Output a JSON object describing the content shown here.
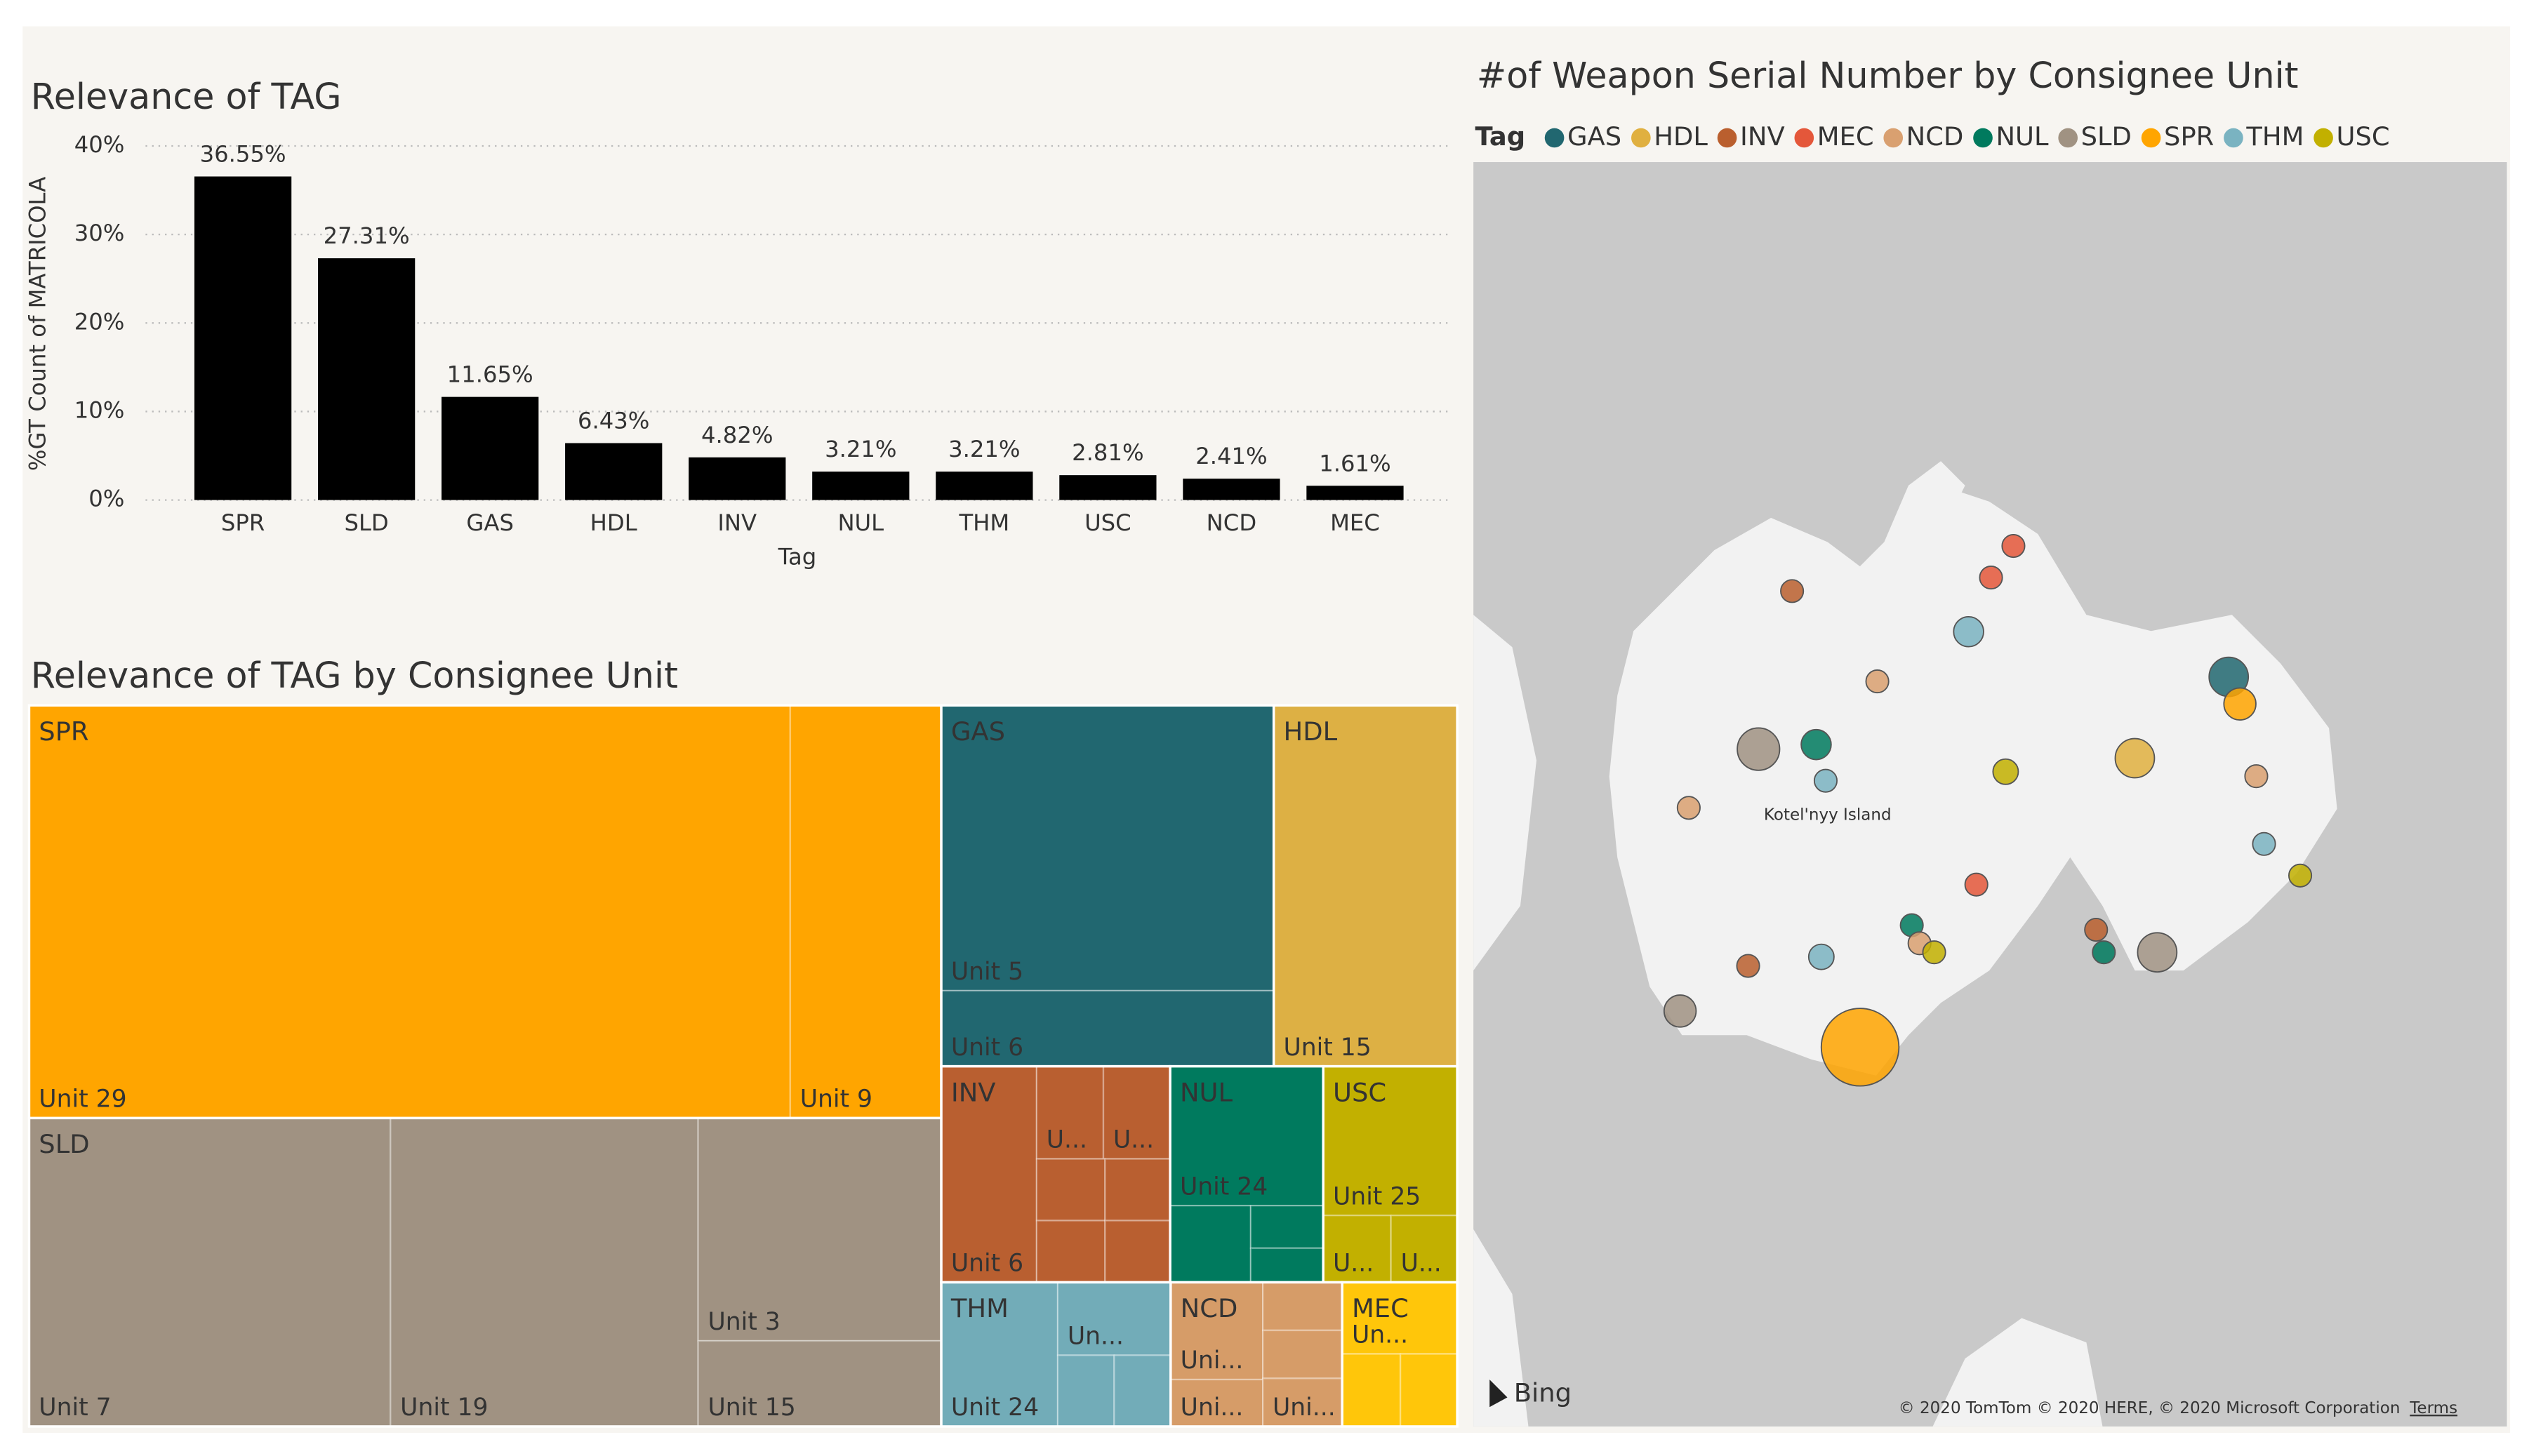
{
  "chart_data": [
    {
      "type": "bar",
      "title": "Relevance of TAG",
      "x_label": "Tag",
      "y_label": "%GT Count of MATRICOLA",
      "categories": [
        "SPR",
        "SLD",
        "GAS",
        "HDL",
        "INV",
        "NUL",
        "THM",
        "USC",
        "NCD",
        "MEC"
      ],
      "values": [
        36.55,
        27.31,
        11.65,
        6.43,
        4.82,
        3.21,
        3.21,
        2.81,
        2.41,
        1.61
      ],
      "value_labels": [
        "36.55%",
        "27.31%",
        "11.65%",
        "6.43%",
        "4.82%",
        "3.21%",
        "3.21%",
        "2.81%",
        "2.41%",
        "1.61%"
      ],
      "color": "#000000",
      "ylim": [
        0,
        40
      ],
      "yticks": [
        {
          "value": 0,
          "label": "0%"
        },
        {
          "value": 10,
          "label": "10%"
        },
        {
          "value": 20,
          "label": "20%"
        },
        {
          "value": 30,
          "label": "30%"
        },
        {
          "value": 40,
          "label": "40%"
        }
      ],
      "grid": true
    },
    {
      "type": "treemap",
      "title": "Relevance of TAG by Consignee Unit",
      "groups": [
        {
          "name": "SPR",
          "color": "#FFA500",
          "children": [
            {
              "label": "Unit 29",
              "value": 30.5
            },
            {
              "label": "Unit 9",
              "value": 6.05
            }
          ]
        },
        {
          "name": "SLD",
          "color": "#A09282",
          "children": [
            {
              "label": "Unit 7",
              "value": 10.82
            },
            {
              "label": "Unit 19",
              "value": 9.21
            },
            {
              "label": "Unit 3",
              "value": 5.26
            },
            {
              "label": "Unit 15",
              "value": 2.02
            }
          ]
        },
        {
          "name": "GAS",
          "color": "#216770",
          "children": [
            {
              "label": "Unit 5",
              "value": 9.21
            },
            {
              "label": "Unit 6",
              "value": 2.44
            }
          ]
        },
        {
          "name": "HDL",
          "color": "#DDB044",
          "children": [
            {
              "label": "Unit 15",
              "value": 6.43
            }
          ]
        },
        {
          "name": "INV",
          "color": "#B95F30",
          "children": [
            {
              "label": "Unit 6",
              "value": 2.0
            },
            {
              "label": "U...",
              "value": 0.6
            },
            {
              "label": "U...",
              "value": 0.6
            },
            {
              "label": null,
              "value": 0.41
            },
            {
              "label": null,
              "value": 0.41
            },
            {
              "label": null,
              "value": 0.39
            },
            {
              "label": null,
              "value": 0.39
            }
          ]
        },
        {
          "name": "NUL",
          "color": "#007A5E",
          "children": [
            {
              "label": "Unit 24",
              "value": 2.07
            },
            {
              "label": null,
              "value": 0.6
            },
            {
              "label": null,
              "value": 0.3
            },
            {
              "label": null,
              "value": 0.24
            }
          ]
        },
        {
          "name": "THM",
          "color": "#72ACB8",
          "children": [
            {
              "label": "Unit 24",
              "value": 1.63
            },
            {
              "label": "Un...",
              "value": 0.8
            },
            {
              "label": null,
              "value": 0.39
            },
            {
              "label": null,
              "value": 0.39
            }
          ]
        },
        {
          "name": "USC",
          "color": "#C2B000",
          "children": [
            {
              "label": "Unit 25",
              "value": 1.94
            },
            {
              "label": "U...",
              "value": 0.44
            },
            {
              "label": "U...",
              "value": 0.43
            }
          ]
        },
        {
          "name": "NCD",
          "color": "#D69C68",
          "children": [
            {
              "label": "Uni...",
              "value": 0.87
            },
            {
              "label": "Uni...",
              "value": 0.42
            },
            {
              "label": null,
              "value": 0.37
            },
            {
              "label": null,
              "value": 0.37
            },
            {
              "label": "Uni...",
              "value": 0.37
            }
          ]
        },
        {
          "name": "MEC",
          "color": "#FFC60A",
          "children": [
            {
              "label": "Un...",
              "value": 0.8
            },
            {
              "label": null,
              "value": 0.41
            },
            {
              "label": null,
              "value": 0.4
            }
          ]
        }
      ]
    },
    {
      "type": "map",
      "title": "#of Weapon Serial Number by Consignee Unit",
      "legend_title": "Tag",
      "series": [
        {
          "name": "GAS",
          "color": "#216770"
        },
        {
          "name": "HDL",
          "color": "#E0B040"
        },
        {
          "name": "INV",
          "color": "#BA5F2E"
        },
        {
          "name": "MEC",
          "color": "#E4573A"
        },
        {
          "name": "NCD",
          "color": "#D9A070"
        },
        {
          "name": "NUL",
          "color": "#007A5E"
        },
        {
          "name": "SLD",
          "color": "#A09282"
        },
        {
          "name": "SPR",
          "color": "#FFA500"
        },
        {
          "name": "THM",
          "color": "#7AB3C1"
        },
        {
          "name": "USC",
          "color": "#C2B000"
        }
      ],
      "xlim": [
        134,
        146
      ],
      "ylim": [
        73.8,
        76.6
      ],
      "points": [
        {
          "tag": "MEC",
          "lon": 140.27,
          "lat": 75.75,
          "size": 4
        },
        {
          "tag": "MEC",
          "lon": 140.01,
          "lat": 75.68,
          "size": 4
        },
        {
          "tag": "INV",
          "lon": 137.7,
          "lat": 75.65,
          "size": 4
        },
        {
          "tag": "THM",
          "lon": 139.75,
          "lat": 75.56,
          "size": 7
        },
        {
          "tag": "NCD",
          "lon": 138.69,
          "lat": 75.45,
          "size": 4
        },
        {
          "tag": "GAS",
          "lon": 142.77,
          "lat": 75.46,
          "size": 12
        },
        {
          "tag": "SPR",
          "lon": 142.9,
          "lat": 75.4,
          "size": 8
        },
        {
          "tag": "SLD",
          "lon": 137.31,
          "lat": 75.3,
          "size": 14
        },
        {
          "tag": "NUL",
          "lon": 137.98,
          "lat": 75.31,
          "size": 7
        },
        {
          "tag": "THM",
          "lon": 138.09,
          "lat": 75.23,
          "size": 4
        },
        {
          "tag": "HDL",
          "lon": 141.68,
          "lat": 75.28,
          "size": 12
        },
        {
          "tag": "USC",
          "lon": 140.18,
          "lat": 75.25,
          "size": 5
        },
        {
          "tag": "NCD",
          "lon": 136.5,
          "lat": 75.17,
          "size": 4
        },
        {
          "tag": "NCD",
          "lon": 143.09,
          "lat": 75.24,
          "size": 4
        },
        {
          "tag": "THM",
          "lon": 143.18,
          "lat": 75.09,
          "size": 4
        },
        {
          "tag": "USC",
          "lon": 143.6,
          "lat": 75.02,
          "size": 4
        },
        {
          "tag": "MEC",
          "lon": 139.84,
          "lat": 75.0,
          "size": 4
        },
        {
          "tag": "NUL",
          "lon": 139.09,
          "lat": 74.91,
          "size": 4
        },
        {
          "tag": "NCD",
          "lon": 139.18,
          "lat": 74.87,
          "size": 4
        },
        {
          "tag": "USC",
          "lon": 139.35,
          "lat": 74.85,
          "size": 4
        },
        {
          "tag": "THM",
          "lon": 138.04,
          "lat": 74.84,
          "size": 5
        },
        {
          "tag": "INV",
          "lon": 137.19,
          "lat": 74.82,
          "size": 4
        },
        {
          "tag": "INV",
          "lon": 141.23,
          "lat": 74.9,
          "size": 4
        },
        {
          "tag": "NUL",
          "lon": 141.32,
          "lat": 74.85,
          "size": 4
        },
        {
          "tag": "SLD",
          "lon": 141.94,
          "lat": 74.85,
          "size": 12
        },
        {
          "tag": "SLD",
          "lon": 136.4,
          "lat": 74.72,
          "size": 8
        },
        {
          "tag": "SPR",
          "lon": 138.49,
          "lat": 74.64,
          "size": 47
        }
      ],
      "place_label": "Kotel'nyy Island",
      "logo": "Bing",
      "attribution": "© 2020 TomTom © 2020 HERE, © 2020 Microsoft Corporation",
      "terms": "Terms"
    }
  ]
}
